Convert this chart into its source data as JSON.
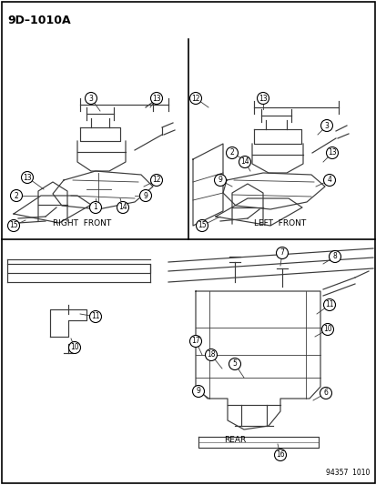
{
  "title": "9D–1010A",
  "background_color": "#ffffff",
  "border_color": "#000000",
  "text_color": "#000000",
  "figsize": [
    4.14,
    5.33
  ],
  "dpi": 100,
  "watermark": "94357  1010",
  "section_labels": {
    "right_front": "RIGHT  FRONT",
    "left_front": "LEFT  FRONT",
    "rear": "REAR"
  }
}
